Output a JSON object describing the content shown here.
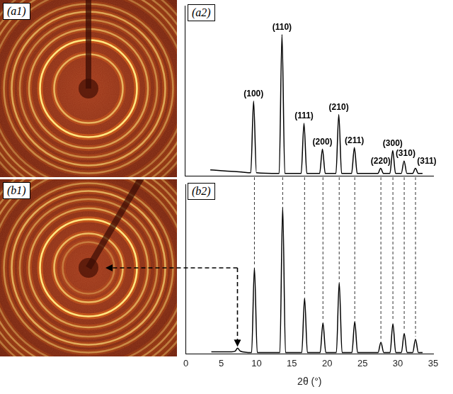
{
  "images": [
    {
      "label": "(a1)"
    },
    {
      "label": "(b1)"
    }
  ],
  "chart_data": [
    {
      "type": "line",
      "label": "(a2)",
      "color": "#000000",
      "x": [
        3.6,
        5,
        6.5,
        8,
        9.3,
        9.7,
        10.1,
        13.3,
        13.7,
        14.1,
        16.4,
        16.8,
        17.2,
        19.0,
        19.4,
        19.8,
        21.3,
        21.7,
        22.1,
        23.5,
        23.9,
        24.3,
        27.2,
        27.6,
        28.0,
        28.9,
        29.3,
        29.7,
        30.5,
        30.9,
        31.3,
        32.1,
        32.5,
        32.9,
        33.5
      ],
      "values": [
        8,
        7,
        6,
        5,
        4,
        101,
        4,
        3,
        191,
        3,
        3,
        71,
        3,
        3,
        36,
        3,
        3,
        83,
        3,
        3,
        38,
        3,
        3,
        10,
        3,
        3,
        34,
        3,
        3,
        20,
        3,
        3,
        10,
        3,
        3
      ],
      "xlim": [
        0,
        35
      ],
      "ylim": [
        0,
        230
      ],
      "tick_labels": false,
      "annotations": [
        {
          "text": "(100)",
          "x": 9.7
        },
        {
          "text": "(110)",
          "x": 13.7
        },
        {
          "text": "(111)",
          "x": 16.8
        },
        {
          "text": "(200)",
          "x": 19.4
        },
        {
          "text": "(210)",
          "x": 21.7
        },
        {
          "text": "(211)",
          "x": 23.9
        },
        {
          "text": "(220)",
          "x": 27.6
        },
        {
          "text": "(300)",
          "x": 29.3
        },
        {
          "text": "(310)",
          "x": 30.9
        },
        {
          "text": "(311)",
          "x": 32.5
        }
      ]
    },
    {
      "type": "line",
      "label": "(b2)",
      "color": "#000000",
      "x": [
        3.6,
        5,
        6.5,
        7.0,
        7.3,
        7.7,
        9.3,
        9.7,
        10.1,
        13.3,
        13.7,
        14.1,
        16.4,
        16.8,
        17.2,
        19.0,
        19.4,
        19.8,
        21.3,
        21.7,
        22.1,
        23.5,
        23.9,
        24.3,
        27.2,
        27.6,
        28.0,
        28.9,
        29.3,
        29.7,
        30.5,
        30.9,
        31.3,
        32.1,
        32.5,
        32.9,
        33.5
      ],
      "values": [
        3,
        3,
        3,
        4,
        8,
        4,
        2,
        117,
        2,
        2,
        199,
        2,
        2,
        76,
        2,
        2,
        42,
        2,
        2,
        97,
        2,
        2,
        44,
        2,
        2,
        16,
        2,
        2,
        41,
        2,
        2,
        28,
        2,
        2,
        20,
        2,
        2
      ],
      "xlim": [
        0,
        35
      ],
      "xticks": [
        0,
        5,
        10,
        15,
        20,
        25,
        30,
        35
      ],
      "ylim": [
        0,
        230
      ],
      "x_label": "2θ (°)",
      "tick_labels": "x"
    }
  ]
}
